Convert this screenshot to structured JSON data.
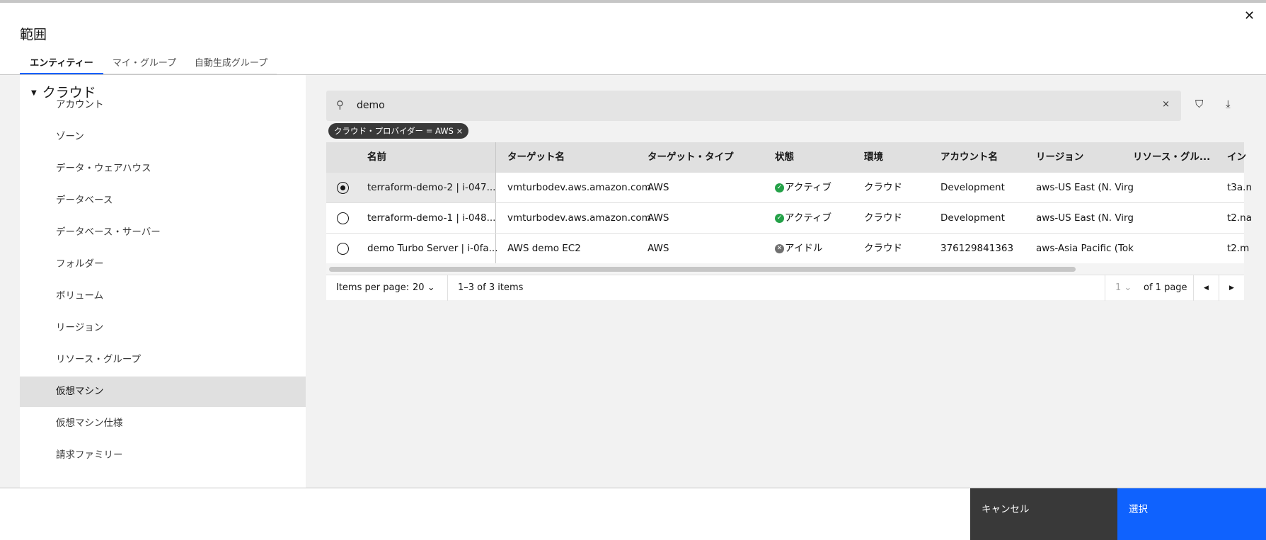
{
  "dialog": {
    "title": "範囲",
    "close_icon": "close-icon"
  },
  "tabs": [
    {
      "label": "エンティティー",
      "active": true
    },
    {
      "label": "マイ・グループ"
    },
    {
      "label": "自動生成グループ"
    }
  ],
  "sidebar": {
    "category": "クラウド",
    "items": [
      "アカウント",
      "ゾーン",
      "データ・ウェアハウス",
      "データベース",
      "データベース・サーバー",
      "フォルダー",
      "ボリューム",
      "リージョン",
      "リソース・グループ",
      "仮想マシン",
      "仮想マシン仕様",
      "請求ファミリー"
    ],
    "selected": "仮想マシン"
  },
  "search": {
    "value": "demo",
    "clear": "×"
  },
  "filter_chip": {
    "label": "クラウド・プロバイダー = AWS",
    "remove": "×"
  },
  "table": {
    "columns": [
      "名前",
      "ターゲット名",
      "ターゲット・タイプ",
      "状態",
      "環境",
      "アカウント名",
      "リージョン",
      "リソース・グル...",
      "イン"
    ],
    "rows": [
      {
        "selected": true,
        "cells": [
          "terraform-demo-2 | i-047...",
          "vmturbodev.aws.amazon.com",
          "AWS",
          "アクティブ",
          "クラウド",
          "Development",
          "aws-US East (N. Virg",
          "",
          "t3a.n"
        ],
        "status": "active"
      },
      {
        "selected": false,
        "cells": [
          "terraform-demo-1 | i-048...",
          "vmturbodev.aws.amazon.com",
          "AWS",
          "アクティブ",
          "クラウド",
          "Development",
          "aws-US East (N. Virg",
          "",
          "t2.na"
        ],
        "status": "active"
      },
      {
        "selected": false,
        "cells": [
          "demo Turbo Server | i-0fa...",
          "AWS demo EC2",
          "AWS",
          "アイドル",
          "クラウド",
          "376129841363",
          "aws-Asia Pacific (Tok",
          "",
          "t2.m"
        ],
        "status": "idle"
      }
    ]
  },
  "pagination": {
    "items_per_page_label": "Items per page:",
    "items_per_page": "20",
    "range": "1–3 of 3 items",
    "page": "1",
    "of_pages": "of 1 page"
  },
  "footer": {
    "cancel": "キャンセル",
    "select": "選択"
  },
  "colors": {
    "accent": "#0f62fe",
    "active": "#24a148",
    "idle": "#6f6f6f",
    "cancel_bg": "#393939"
  }
}
